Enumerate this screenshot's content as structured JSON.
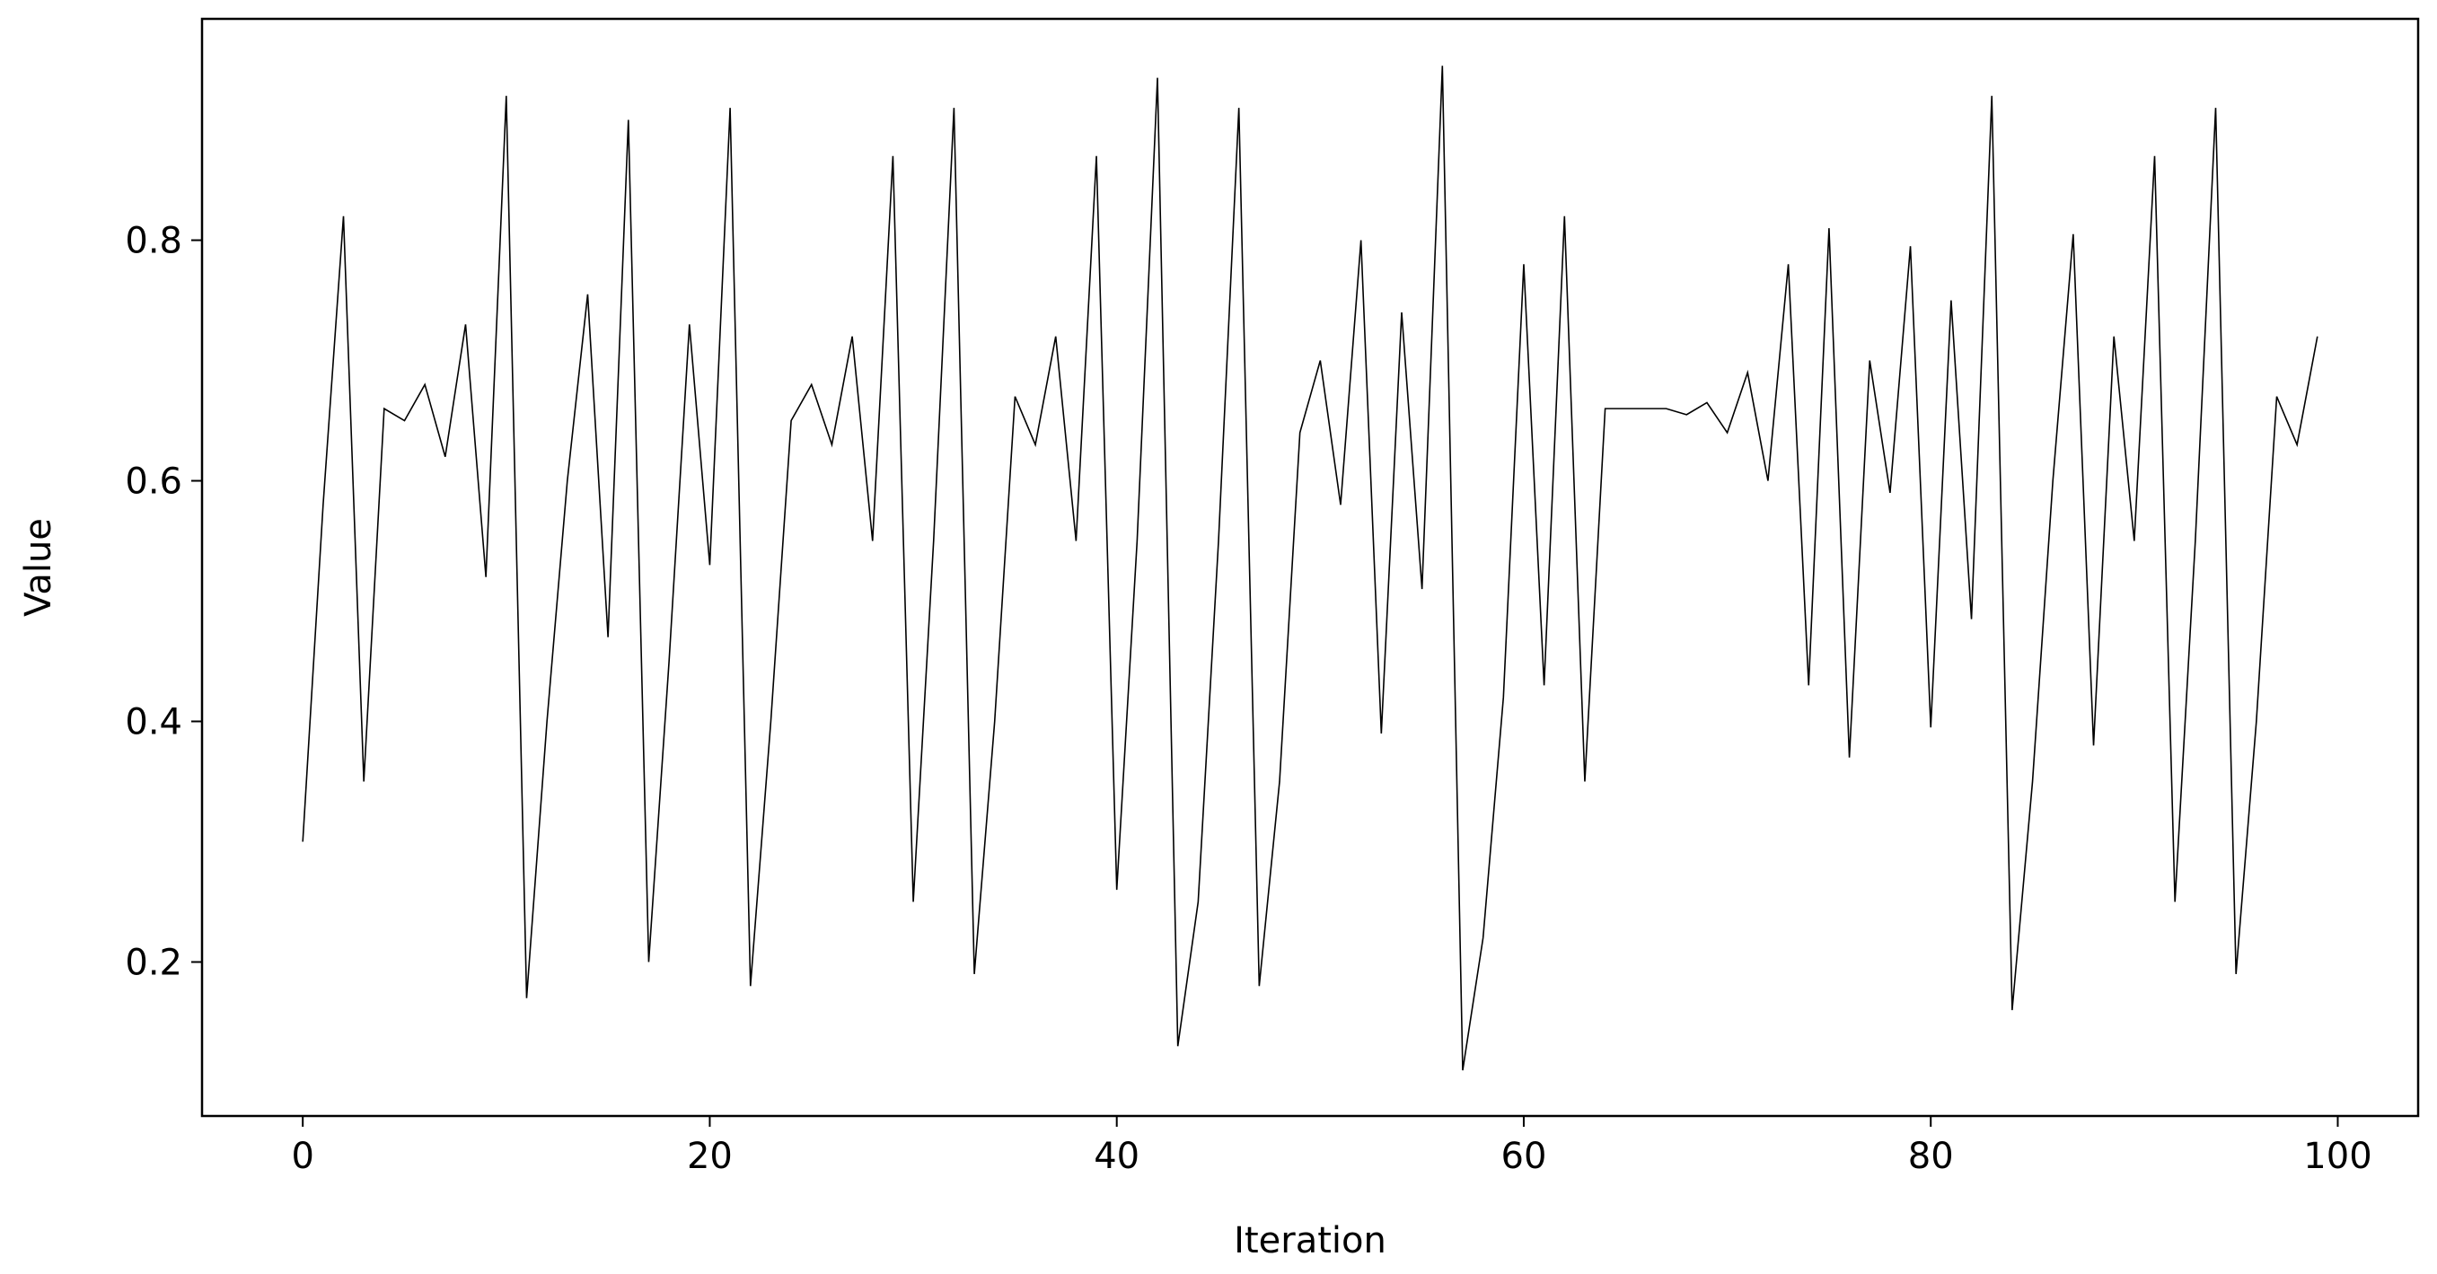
{
  "chart_data": {
    "type": "line",
    "x_label": "Iteration",
    "y_label": "Value",
    "x": [
      0,
      1,
      2,
      3,
      4,
      5,
      6,
      7,
      8,
      9,
      10,
      11,
      12,
      13,
      14,
      15,
      16,
      17,
      18,
      19,
      20,
      21,
      22,
      23,
      24,
      25,
      26,
      27,
      28,
      29,
      30,
      31,
      32,
      33,
      34,
      35,
      36,
      37,
      38,
      39,
      40,
      41,
      42,
      43,
      44,
      45,
      46,
      47,
      48,
      49,
      50,
      51,
      52,
      53,
      54,
      55,
      56,
      57,
      58,
      59,
      60,
      61,
      62,
      63,
      64,
      65,
      66,
      67,
      68,
      69,
      70,
      71,
      72,
      73,
      74,
      75,
      76,
      77,
      78,
      79,
      80,
      81,
      82,
      83,
      84,
      85,
      86,
      87,
      88,
      89,
      90,
      91,
      92,
      93,
      94,
      95,
      96,
      97,
      98,
      99
    ],
    "values": [
      0.3,
      0.58,
      0.82,
      0.35,
      0.66,
      0.65,
      0.68,
      0.62,
      0.73,
      0.52,
      0.92,
      0.17,
      0.4,
      0.6,
      0.755,
      0.47,
      0.9,
      0.2,
      0.45,
      0.73,
      0.53,
      0.91,
      0.18,
      0.4,
      0.65,
      0.68,
      0.63,
      0.72,
      0.55,
      0.87,
      0.25,
      0.55,
      0.91,
      0.19,
      0.4,
      0.67,
      0.63,
      0.72,
      0.55,
      0.87,
      0.26,
      0.55,
      0.935,
      0.13,
      0.25,
      0.55,
      0.91,
      0.18,
      0.35,
      0.64,
      0.7,
      0.58,
      0.8,
      0.39,
      0.74,
      0.51,
      0.945,
      0.11,
      0.22,
      0.42,
      0.78,
      0.43,
      0.82,
      0.35,
      0.66,
      0.66,
      0.66,
      0.66,
      0.655,
      0.665,
      0.64,
      0.69,
      0.6,
      0.78,
      0.43,
      0.81,
      0.37,
      0.7,
      0.59,
      0.795,
      0.395,
      0.75,
      0.485,
      0.92,
      0.16,
      0.35,
      0.6,
      0.805,
      0.38,
      0.72,
      0.55,
      0.87,
      0.25,
      0.55,
      0.91,
      0.19,
      0.4,
      0.67,
      0.63,
      0.72
    ],
    "color": "#000000",
    "xlim": [
      -4.95,
      103.95
    ],
    "xticks": [
      0,
      20,
      40,
      60,
      80,
      100
    ],
    "ylim": [
      0.072,
      0.984
    ],
    "yticks": [
      0.2,
      0.4,
      0.6,
      0.8
    ]
  }
}
